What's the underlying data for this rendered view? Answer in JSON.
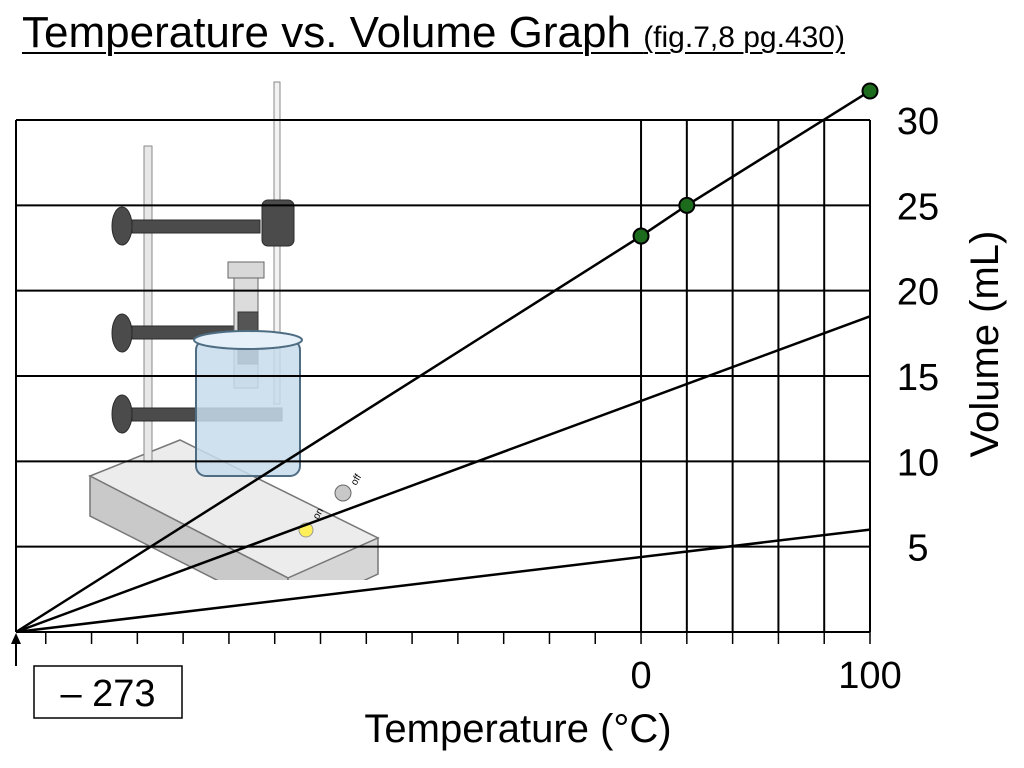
{
  "title": {
    "main": "Temperature vs. Volume Graph",
    "subtitle": "(fig.7,8 pg.430)"
  },
  "chart_data": {
    "type": "line",
    "xlabel": "Temperature (°C)",
    "ylabel": "Volume (mL)",
    "xlim": [
      -273,
      100
    ],
    "ylim": [
      0,
      30
    ],
    "y_ticks": [
      5,
      10,
      15,
      20,
      25,
      30
    ],
    "x_tick_labels": [
      {
        "value": 0,
        "text": "0"
      },
      {
        "value": 100,
        "text": "100"
      }
    ],
    "x_annotation": {
      "value": -273,
      "text": "– 273"
    },
    "grid": true,
    "series": [
      {
        "x": [
          -273,
          0,
          20,
          100
        ],
        "y": [
          0,
          23.2,
          25,
          31.7
        ],
        "markers": [
          [
            0,
            23.2
          ],
          [
            20,
            25
          ],
          [
            100,
            31.7
          ]
        ]
      },
      {
        "x": [
          -273,
          100
        ],
        "y": [
          0,
          18.5
        ]
      },
      {
        "x": [
          -273,
          100
        ],
        "y": [
          0,
          6
        ]
      }
    ],
    "colors": {
      "marker_fill": "#1d6b1d",
      "line": "#000000"
    }
  },
  "illustration": {
    "switch_on": "on",
    "switch_off": "off"
  }
}
